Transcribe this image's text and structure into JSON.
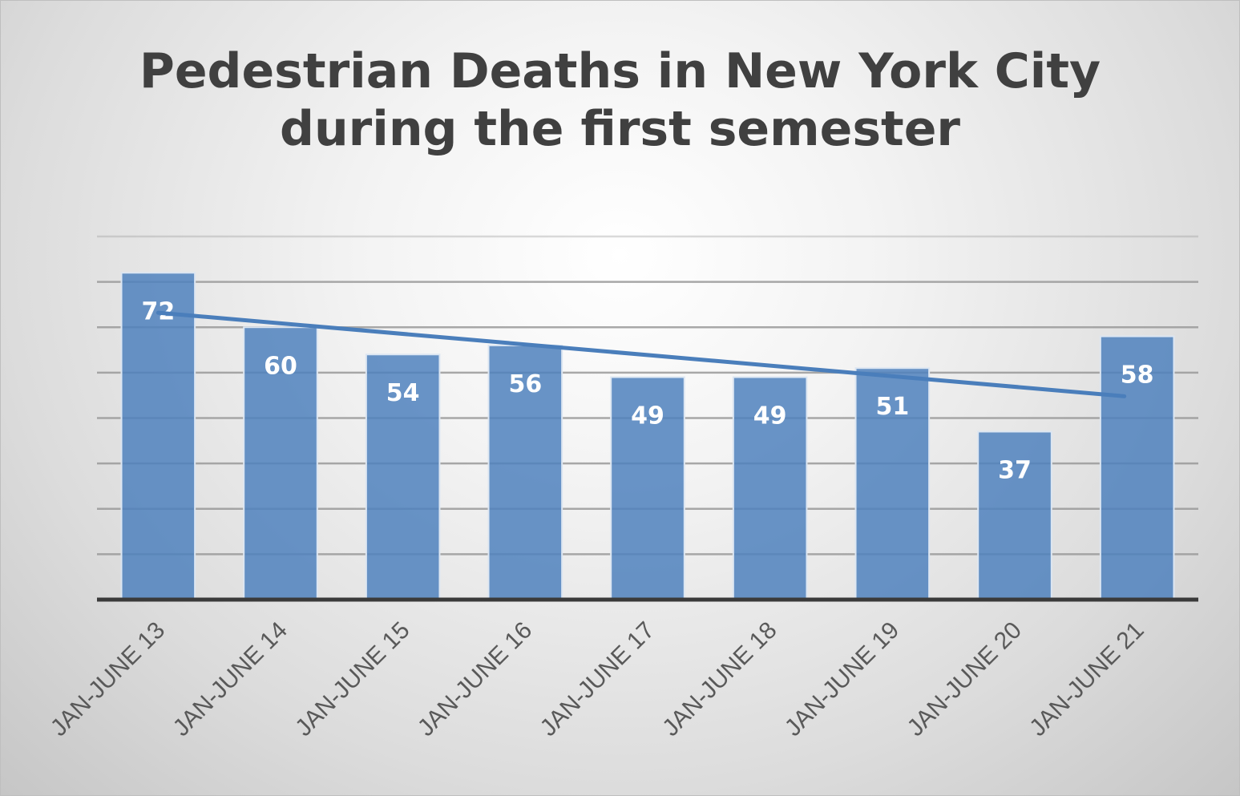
{
  "chart_data": {
    "type": "bar",
    "title_lines": [
      "Pedestrian Deaths in New York City",
      "during the first semester"
    ],
    "categories": [
      "JAN-JUNE 13",
      "JAN-JUNE 14",
      "JAN-JUNE 15",
      "JAN-JUNE 16",
      "JAN-JUNE 17",
      "JAN-JUNE 18",
      "JAN-JUNE 19",
      "JAN-JUNE 20",
      "JAN-JUNE 21"
    ],
    "values": [
      72,
      60,
      54,
      56,
      49,
      49,
      51,
      37,
      58
    ],
    "ylim": [
      0,
      80
    ],
    "grid_step": 10,
    "grid": true,
    "y_tick_labels": false,
    "data_labels": true,
    "trendline": "linear",
    "bar_color": "#4f81bd",
    "trend_color": "#4a7ebb",
    "grid_color": "#9a9a9a",
    "axis_color": "#3a3a3a"
  }
}
